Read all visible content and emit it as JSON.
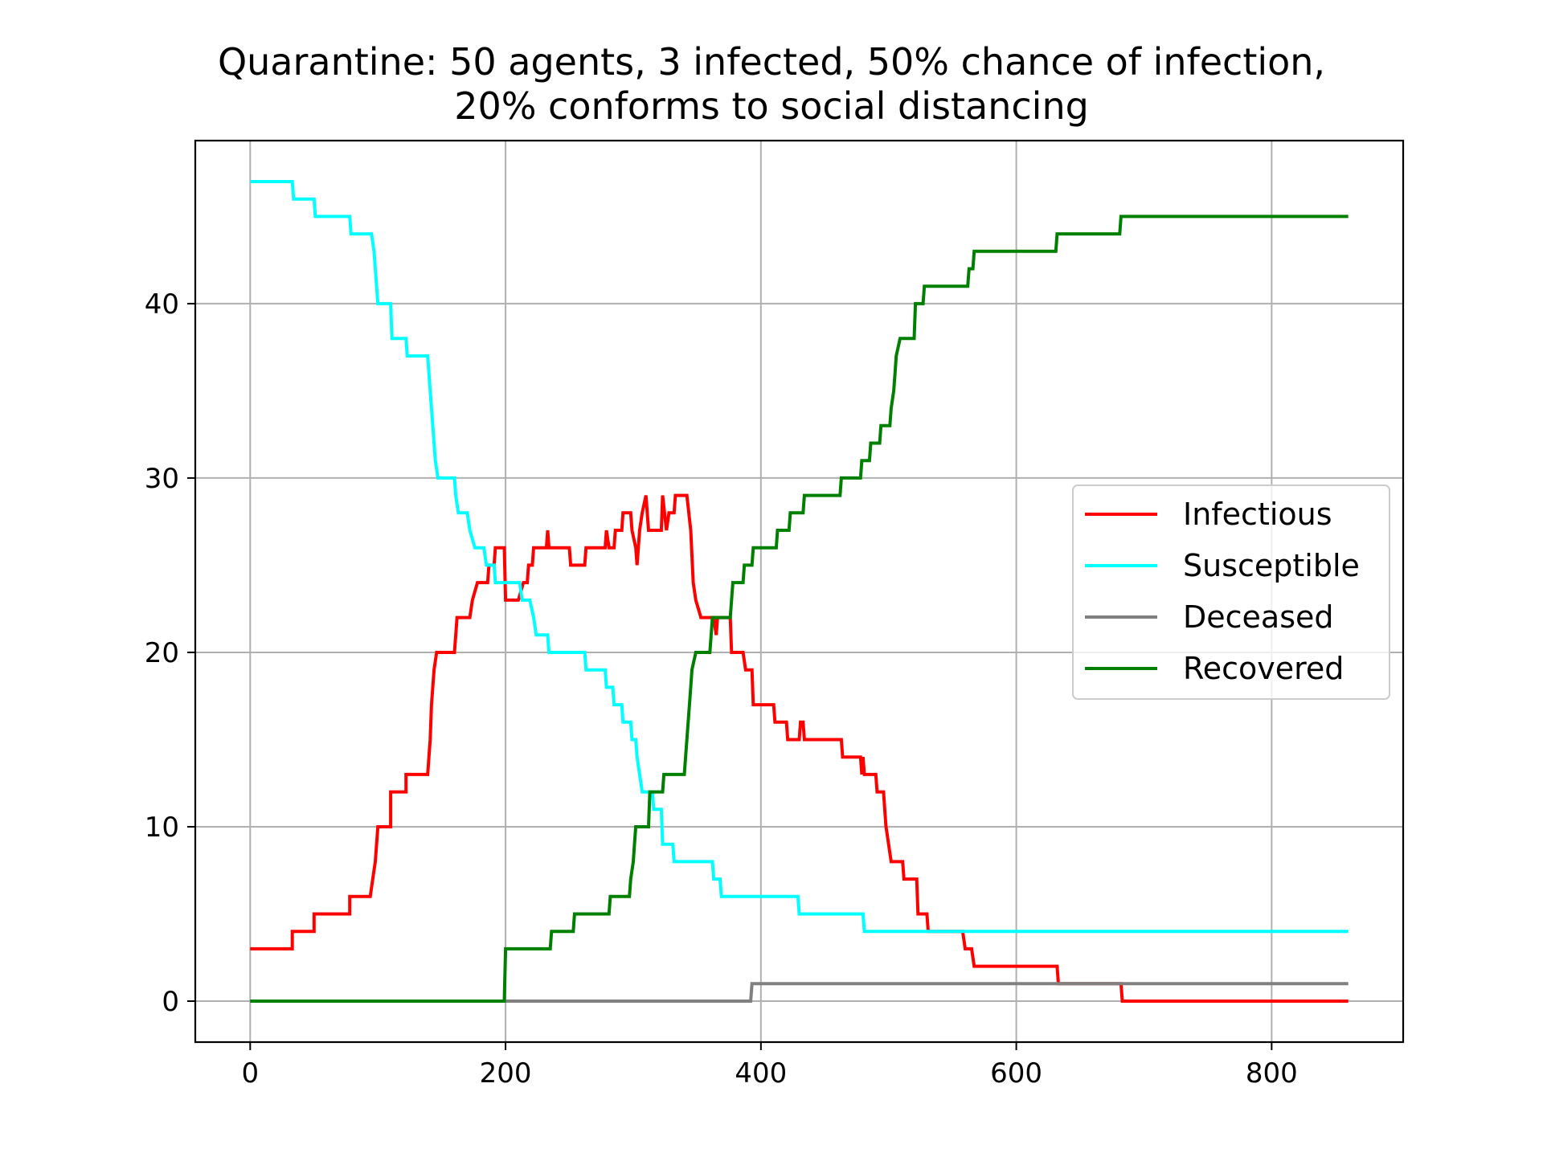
{
  "chart_data": {
    "type": "line",
    "title": [
      "Quarantine: 50 agents, 3 infected, 50% chance of infection,",
      "20% conforms to social distancing"
    ],
    "xlabel": "",
    "ylabel": "",
    "xlim": [
      -43,
      903
    ],
    "ylim": [
      -2.35,
      49.35
    ],
    "xticks": [
      0,
      200,
      400,
      600,
      800
    ],
    "yticks": [
      0,
      10,
      20,
      30,
      40
    ],
    "grid": true,
    "legend_position": "center-right",
    "series": [
      {
        "name": "Infectious",
        "color": "#ff0000",
        "points": [
          [
            0,
            3
          ],
          [
            33,
            3
          ],
          [
            33,
            4
          ],
          [
            50,
            4
          ],
          [
            50,
            5
          ],
          [
            78,
            5
          ],
          [
            78,
            6
          ],
          [
            94,
            6
          ],
          [
            96,
            7
          ],
          [
            98,
            8
          ],
          [
            100,
            10
          ],
          [
            110,
            10
          ],
          [
            110,
            12
          ],
          [
            122,
            12
          ],
          [
            122,
            13
          ],
          [
            139,
            13
          ],
          [
            140,
            14
          ],
          [
            141,
            15
          ],
          [
            142,
            17
          ],
          [
            143,
            18
          ],
          [
            144,
            19
          ],
          [
            146,
            20
          ],
          [
            160,
            20
          ],
          [
            162,
            22
          ],
          [
            172,
            22
          ],
          [
            174,
            23
          ],
          [
            178,
            24
          ],
          [
            186,
            24
          ],
          [
            187,
            25
          ],
          [
            191,
            25
          ],
          [
            192,
            26
          ],
          [
            199,
            26
          ],
          [
            200,
            23
          ],
          [
            210,
            23
          ],
          [
            214,
            24
          ],
          [
            217,
            24
          ],
          [
            218,
            25
          ],
          [
            221,
            25
          ],
          [
            222,
            26
          ],
          [
            232,
            26
          ],
          [
            233,
            27
          ],
          [
            234,
            26
          ],
          [
            250,
            26
          ],
          [
            251,
            25
          ],
          [
            262,
            25
          ],
          [
            263,
            26
          ],
          [
            278,
            26
          ],
          [
            279,
            27
          ],
          [
            281,
            26
          ],
          [
            285,
            26
          ],
          [
            286,
            27
          ],
          [
            291,
            27
          ],
          [
            292,
            28
          ],
          [
            298,
            28
          ],
          [
            299,
            27
          ],
          [
            302,
            26
          ],
          [
            303,
            25
          ],
          [
            305,
            27
          ],
          [
            307,
            28
          ],
          [
            310,
            29
          ],
          [
            312,
            27
          ],
          [
            322,
            27
          ],
          [
            323,
            29
          ],
          [
            326,
            27
          ],
          [
            328,
            28
          ],
          [
            332,
            28
          ],
          [
            333,
            29
          ],
          [
            342,
            29
          ],
          [
            345,
            27
          ],
          [
            347,
            24
          ],
          [
            349,
            23
          ],
          [
            353,
            22
          ],
          [
            363,
            22
          ],
          [
            365,
            21
          ],
          [
            366,
            22
          ],
          [
            376,
            22
          ],
          [
            377,
            20
          ],
          [
            386,
            20
          ],
          [
            388,
            19
          ],
          [
            393,
            19
          ],
          [
            394,
            17
          ],
          [
            410,
            17
          ],
          [
            411,
            16
          ],
          [
            420,
            16
          ],
          [
            421,
            15
          ],
          [
            430,
            15
          ],
          [
            431,
            16
          ],
          [
            433,
            16
          ],
          [
            434,
            15
          ],
          [
            463,
            15
          ],
          [
            464,
            14
          ],
          [
            478,
            14
          ],
          [
            479,
            13
          ],
          [
            480,
            14
          ],
          [
            481,
            13
          ],
          [
            490,
            13
          ],
          [
            491,
            12
          ],
          [
            496,
            12
          ],
          [
            497,
            11
          ],
          [
            498,
            10
          ],
          [
            500,
            9
          ],
          [
            502,
            8
          ],
          [
            511,
            8
          ],
          [
            512,
            7
          ],
          [
            522,
            7
          ],
          [
            523,
            5
          ],
          [
            530,
            5
          ],
          [
            531,
            4
          ],
          [
            558,
            4
          ],
          [
            560,
            3
          ],
          [
            565,
            3
          ],
          [
            567,
            2
          ],
          [
            632,
            2
          ],
          [
            633,
            1
          ],
          [
            682,
            1
          ],
          [
            683,
            0
          ],
          [
            860,
            0
          ]
        ]
      },
      {
        "name": "Susceptible",
        "color": "#00ffff",
        "points": [
          [
            0,
            47
          ],
          [
            33,
            47
          ],
          [
            34,
            46
          ],
          [
            50,
            46
          ],
          [
            51,
            45
          ],
          [
            78,
            45
          ],
          [
            79,
            44
          ],
          [
            95,
            44
          ],
          [
            97,
            43
          ],
          [
            98,
            42
          ],
          [
            100,
            40
          ],
          [
            110,
            40
          ],
          [
            111,
            38
          ],
          [
            122,
            38
          ],
          [
            123,
            37
          ],
          [
            139,
            37
          ],
          [
            140,
            36
          ],
          [
            141,
            35
          ],
          [
            142,
            34
          ],
          [
            143,
            33
          ],
          [
            144,
            32
          ],
          [
            145,
            31
          ],
          [
            147,
            30
          ],
          [
            160,
            30
          ],
          [
            161,
            29
          ],
          [
            163,
            28
          ],
          [
            170,
            28
          ],
          [
            172,
            27
          ],
          [
            176,
            26
          ],
          [
            183,
            26
          ],
          [
            185,
            25
          ],
          [
            191,
            25
          ],
          [
            192,
            24
          ],
          [
            211,
            24
          ],
          [
            213,
            23
          ],
          [
            219,
            23
          ],
          [
            222,
            22
          ],
          [
            224,
            21
          ],
          [
            233,
            21
          ],
          [
            234,
            20
          ],
          [
            262,
            20
          ],
          [
            263,
            19
          ],
          [
            278,
            19
          ],
          [
            279,
            18
          ],
          [
            284,
            18
          ],
          [
            285,
            17
          ],
          [
            291,
            17
          ],
          [
            292,
            16
          ],
          [
            298,
            16
          ],
          [
            299,
            15
          ],
          [
            302,
            15
          ],
          [
            303,
            14
          ],
          [
            305,
            13
          ],
          [
            307,
            12
          ],
          [
            315,
            12
          ],
          [
            316,
            11
          ],
          [
            322,
            11
          ],
          [
            323,
            9
          ],
          [
            331,
            9
          ],
          [
            332,
            8
          ],
          [
            362,
            8
          ],
          [
            363,
            7
          ],
          [
            368,
            7
          ],
          [
            369,
            6
          ],
          [
            429,
            6
          ],
          [
            430,
            5
          ],
          [
            480,
            5
          ],
          [
            481,
            4
          ],
          [
            860,
            4
          ]
        ]
      },
      {
        "name": "Deceased",
        "color": "#808080",
        "points": [
          [
            0,
            0
          ],
          [
            392,
            0
          ],
          [
            393,
            1
          ],
          [
            860,
            1
          ]
        ]
      },
      {
        "name": "Recovered",
        "color": "#008000",
        "points": [
          [
            0,
            0
          ],
          [
            199,
            0
          ],
          [
            200,
            3
          ],
          [
            235,
            3
          ],
          [
            236,
            4
          ],
          [
            253,
            4
          ],
          [
            254,
            5
          ],
          [
            281,
            5
          ],
          [
            282,
            6
          ],
          [
            297,
            6
          ],
          [
            298,
            7
          ],
          [
            300,
            8
          ],
          [
            301,
            9
          ],
          [
            302,
            10
          ],
          [
            312,
            10
          ],
          [
            313,
            12
          ],
          [
            323,
            12
          ],
          [
            324,
            13
          ],
          [
            340,
            13
          ],
          [
            341,
            14
          ],
          [
            342,
            15
          ],
          [
            343,
            16
          ],
          [
            345,
            18
          ],
          [
            346,
            19
          ],
          [
            349,
            20
          ],
          [
            360,
            20
          ],
          [
            361,
            21
          ],
          [
            362,
            22
          ],
          [
            376,
            22
          ],
          [
            377,
            23
          ],
          [
            378,
            24
          ],
          [
            386,
            24
          ],
          [
            387,
            25
          ],
          [
            393,
            25
          ],
          [
            394,
            26
          ],
          [
            412,
            26
          ],
          [
            413,
            27
          ],
          [
            422,
            27
          ],
          [
            423,
            28
          ],
          [
            433,
            28
          ],
          [
            434,
            29
          ],
          [
            462,
            29
          ],
          [
            463,
            30
          ],
          [
            478,
            30
          ],
          [
            479,
            31
          ],
          [
            485,
            31
          ],
          [
            486,
            32
          ],
          [
            493,
            32
          ],
          [
            494,
            33
          ],
          [
            501,
            33
          ],
          [
            502,
            34
          ],
          [
            504,
            35
          ],
          [
            505,
            36
          ],
          [
            506,
            37
          ],
          [
            509,
            38
          ],
          [
            520,
            38
          ],
          [
            521,
            40
          ],
          [
            527,
            40
          ],
          [
            528,
            41
          ],
          [
            562,
            41
          ],
          [
            563,
            42
          ],
          [
            566,
            42
          ],
          [
            567,
            43
          ],
          [
            631,
            43
          ],
          [
            632,
            44
          ],
          [
            681,
            44
          ],
          [
            682,
            45
          ],
          [
            860,
            45
          ]
        ]
      }
    ]
  }
}
